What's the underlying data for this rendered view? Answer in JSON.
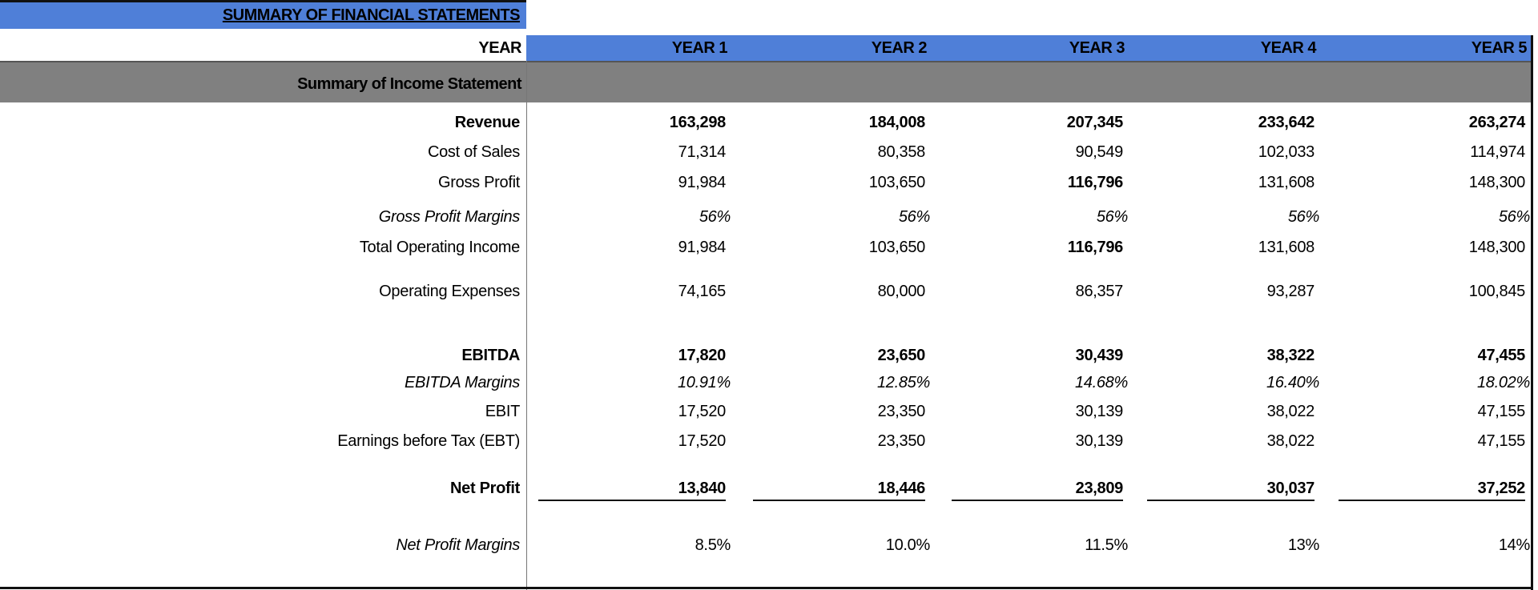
{
  "title": "SUMMARY OF FINANCIAL STATEMENTS",
  "header": {
    "year_label": "YEAR",
    "years": [
      "YEAR 1",
      "YEAR 2",
      "YEAR 3",
      "YEAR 4",
      "YEAR 5"
    ]
  },
  "section": "Summary of Income Statement",
  "colors": {
    "header_blue": "#4f7fd8",
    "section_gray": "#808080"
  },
  "rows": [
    {
      "label": "Revenue",
      "values": [
        "163,298",
        "184,008",
        "207,345",
        "233,642",
        "263,274"
      ]
    },
    {
      "label": "Cost of Sales",
      "values": [
        "71,314",
        "80,358",
        "90,549",
        "102,033",
        "114,974"
      ]
    },
    {
      "label": "Gross Profit",
      "values": [
        "91,984",
        "103,650",
        "116,796",
        "131,608",
        "148,300"
      ]
    },
    {
      "label": "Gross Profit Margins",
      "values": [
        "56%",
        "56%",
        "56%",
        "56%",
        "56%"
      ]
    },
    {
      "label": "Total Operating Income",
      "values": [
        "91,984",
        "103,650",
        "116,796",
        "131,608",
        "148,300"
      ]
    },
    {
      "label": "Operating Expenses",
      "values": [
        "74,165",
        "80,000",
        "86,357",
        "93,287",
        "100,845"
      ]
    },
    {
      "label": "EBITDA",
      "values": [
        "17,820",
        "23,650",
        "30,439",
        "38,322",
        "47,455"
      ]
    },
    {
      "label": "EBITDA Margins",
      "values": [
        "10.91%",
        "12.85%",
        "14.68%",
        "16.40%",
        "18.02%"
      ]
    },
    {
      "label": "EBIT",
      "values": [
        "17,520",
        "23,350",
        "30,139",
        "38,022",
        "47,155"
      ]
    },
    {
      "label": "Earnings before Tax (EBT)",
      "values": [
        "17,520",
        "23,350",
        "30,139",
        "38,022",
        "47,155"
      ]
    },
    {
      "label": "Net Profit",
      "values": [
        "13,840",
        "18,446",
        "23,809",
        "30,037",
        "37,252"
      ]
    },
    {
      "label": "Net Profit Margins",
      "values": [
        "8.5%",
        "10.0%",
        "11.5%",
        "13%",
        "14%"
      ]
    }
  ]
}
